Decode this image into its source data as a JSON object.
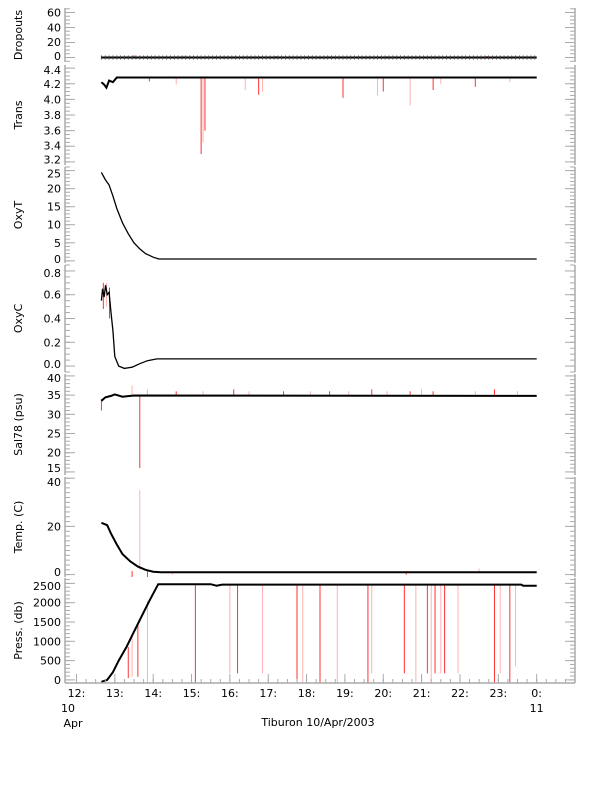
{
  "chart_data": {
    "type": "line",
    "title": "",
    "xlabel": "Tiburon 10/Apr/2003",
    "xlim_hours": [
      11.7,
      25.0
    ],
    "x_ticks": [
      {
        "h": 12,
        "label": "12:",
        "sub1": "10",
        "sub2": "Apr"
      },
      {
        "h": 13,
        "label": "13:"
      },
      {
        "h": 14,
        "label": "14:"
      },
      {
        "h": 15,
        "label": "15:"
      },
      {
        "h": 16,
        "label": "16:"
      },
      {
        "h": 17,
        "label": "17:"
      },
      {
        "h": 18,
        "label": "18:"
      },
      {
        "h": 19,
        "label": "19:"
      },
      {
        "h": 20,
        "label": "20:"
      },
      {
        "h": 21,
        "label": "21:"
      },
      {
        "h": 22,
        "label": "22:"
      },
      {
        "h": 23,
        "label": "23:"
      },
      {
        "h": 24,
        "label": "0:",
        "sub1": "11"
      }
    ],
    "colors": {
      "line": "#000000",
      "spike": "#ff3333",
      "spike_light": "#ffb0b0",
      "axis": "#aaaaaa"
    },
    "panels": [
      {
        "id": "dropouts",
        "ylabel": "Dropouts",
        "ylim": [
          -6,
          66
        ],
        "ticks": [
          0,
          20,
          40,
          60
        ],
        "minor": 5,
        "series": [
          [
            12.65,
            0
          ],
          [
            24.0,
            0
          ]
        ],
        "spikes": [
          [
            13.5,
            0,
            3
          ],
          [
            14.8,
            0,
            3
          ],
          [
            17.2,
            0,
            2
          ],
          [
            20.1,
            0,
            2
          ],
          [
            22.7,
            0,
            2
          ]
        ]
      },
      {
        "id": "trans",
        "ylabel": "Trans",
        "ylim": [
          3.16,
          4.44
        ],
        "ticks": [
          3.2,
          3.4,
          3.6,
          3.8,
          4.0,
          4.2,
          4.4
        ],
        "minor": 0.05,
        "decimals": 1,
        "series": [
          [
            12.65,
            4.22
          ],
          [
            12.72,
            4.19
          ],
          [
            12.78,
            4.15
          ],
          [
            12.85,
            4.24
          ],
          [
            12.95,
            4.22
          ],
          [
            13.05,
            4.28
          ],
          [
            24.0,
            4.28
          ]
        ],
        "spikes": [
          [
            13.9,
            4.23,
            4.28
          ],
          [
            14.6,
            4.19,
            4.28
          ],
          [
            15.25,
            3.3,
            4.28
          ],
          [
            15.3,
            3.45,
            4.28
          ],
          [
            15.35,
            3.6,
            4.28
          ],
          [
            16.4,
            4.12,
            4.28
          ],
          [
            16.75,
            4.06,
            4.28
          ],
          [
            16.85,
            4.1,
            4.28
          ],
          [
            18.95,
            4.02,
            4.28
          ],
          [
            19.85,
            4.05,
            4.28
          ],
          [
            20.0,
            4.1,
            4.28
          ],
          [
            20.7,
            3.92,
            4.28
          ],
          [
            21.3,
            4.12,
            4.28
          ],
          [
            21.5,
            4.2,
            4.28
          ],
          [
            22.4,
            4.16,
            4.28
          ],
          [
            23.3,
            4.22,
            4.28
          ]
        ]
      },
      {
        "id": "oxyt",
        "ylabel": "OxyT",
        "ylim": [
          -0.6,
          26
        ],
        "ticks": [
          0,
          5,
          10,
          15,
          20,
          25
        ],
        "minor": 1,
        "series": [
          [
            12.65,
            24.5
          ],
          [
            12.75,
            22.5
          ],
          [
            12.85,
            21
          ],
          [
            12.95,
            18
          ],
          [
            13.05,
            14.5
          ],
          [
            13.2,
            10.5
          ],
          [
            13.35,
            7.5
          ],
          [
            13.5,
            5
          ],
          [
            13.65,
            3.3
          ],
          [
            13.8,
            2
          ],
          [
            14.0,
            1
          ],
          [
            14.15,
            0.5
          ],
          [
            24.0,
            0.5
          ]
        ],
        "spikes": []
      },
      {
        "id": "oxyc",
        "ylabel": "OxyC",
        "ylim": [
          -0.05,
          0.85
        ],
        "ticks": [
          0.0,
          0.2,
          0.4,
          0.6,
          0.8
        ],
        "minor": 0.05,
        "decimals": 1,
        "series": [
          [
            12.65,
            0.55
          ],
          [
            12.68,
            0.65
          ],
          [
            12.72,
            0.58
          ],
          [
            12.76,
            0.68
          ],
          [
            12.8,
            0.6
          ],
          [
            12.85,
            0.62
          ],
          [
            12.9,
            0.45
          ],
          [
            12.95,
            0.3
          ],
          [
            13.0,
            0.08
          ],
          [
            13.1,
            0.0
          ],
          [
            13.25,
            -0.02
          ],
          [
            13.45,
            -0.01
          ],
          [
            13.65,
            0.02
          ],
          [
            13.85,
            0.045
          ],
          [
            14.1,
            0.06
          ],
          [
            24.0,
            0.06
          ]
        ],
        "spikes": [
          [
            12.7,
            0.48,
            0.7
          ],
          [
            12.78,
            0.5,
            0.7
          ],
          [
            12.86,
            0.4,
            0.66
          ]
        ]
      },
      {
        "id": "sal78",
        "ylabel": "Sal78 (psu)",
        "ylim": [
          14.2,
          40.5
        ],
        "ticks": [
          15,
          20,
          25,
          30,
          35,
          40
        ],
        "minor": 1,
        "series": [
          [
            12.65,
            33.5
          ],
          [
            12.75,
            34.4
          ],
          [
            12.9,
            34.8
          ],
          [
            13.0,
            35.2
          ],
          [
            13.2,
            34.6
          ],
          [
            13.5,
            34.9
          ],
          [
            24.0,
            34.8
          ]
        ],
        "spikes": [
          [
            12.65,
            31,
            34
          ],
          [
            13.45,
            34.8,
            37.5
          ],
          [
            13.65,
            16,
            34.8
          ],
          [
            13.85,
            34.8,
            36.5
          ],
          [
            14.6,
            34.8,
            36
          ],
          [
            15.3,
            34.8,
            36
          ],
          [
            16.1,
            34.8,
            36.5
          ],
          [
            16.5,
            34.8,
            36
          ],
          [
            17.4,
            34.8,
            36
          ],
          [
            18.1,
            34.8,
            36
          ],
          [
            18.6,
            34.8,
            36
          ],
          [
            19.1,
            34.8,
            36
          ],
          [
            19.7,
            34.8,
            36.5
          ],
          [
            20.1,
            34.8,
            36
          ],
          [
            20.7,
            34.8,
            36
          ],
          [
            21.0,
            34.8,
            36.5
          ],
          [
            21.3,
            34.8,
            36
          ],
          [
            22.4,
            34.8,
            36
          ],
          [
            22.9,
            34.8,
            36.5
          ],
          [
            23.5,
            34.8,
            36
          ]
        ]
      },
      {
        "id": "temp",
        "ylabel": "Temp. (C)",
        "ylim": [
          -1,
          40.5
        ],
        "ticks": [
          0,
          20,
          40
        ],
        "minor": 2,
        "series": [
          [
            12.65,
            21.5
          ],
          [
            12.8,
            20.5
          ],
          [
            12.9,
            17
          ],
          [
            13.05,
            12.5
          ],
          [
            13.2,
            8.5
          ],
          [
            13.4,
            5.5
          ],
          [
            13.6,
            3.3
          ],
          [
            13.8,
            2
          ],
          [
            14.0,
            1.2
          ],
          [
            14.2,
            1
          ],
          [
            24.0,
            1
          ]
        ],
        "spikes": [
          [
            13.45,
            -1,
            1.5
          ],
          [
            13.65,
            2,
            35
          ],
          [
            13.85,
            -1,
            1.5
          ],
          [
            14.5,
            0,
            1
          ],
          [
            20.6,
            0,
            1.5
          ],
          [
            22.5,
            1,
            2.5
          ]
        ]
      },
      {
        "id": "press",
        "ylabel": "Press. (db)",
        "ylim": [
          -80,
          2640
        ],
        "ticks": [
          0,
          500,
          1000,
          1500,
          2000,
          2500
        ],
        "minor": 100,
        "series": [
          [
            12.65,
            -50
          ],
          [
            12.8,
            0
          ],
          [
            12.95,
            200
          ],
          [
            13.1,
            500
          ],
          [
            13.3,
            850
          ],
          [
            13.5,
            1250
          ],
          [
            13.7,
            1650
          ],
          [
            13.9,
            2050
          ],
          [
            14.13,
            2480
          ],
          [
            15.5,
            2480
          ],
          [
            15.65,
            2440
          ],
          [
            15.8,
            2470
          ],
          [
            23.6,
            2470
          ],
          [
            23.65,
            2440
          ],
          [
            24.0,
            2440
          ]
        ],
        "spikes": [
          [
            13.35,
            50,
            850
          ],
          [
            13.45,
            80,
            1100
          ],
          [
            13.6,
            80,
            1450
          ],
          [
            13.85,
            -80,
            2050
          ],
          [
            15.1,
            -80,
            2480
          ],
          [
            16.0,
            170,
            2480
          ],
          [
            16.2,
            170,
            2480
          ],
          [
            16.85,
            170,
            2480
          ],
          [
            17.75,
            -80,
            2480
          ],
          [
            17.9,
            -80,
            2480
          ],
          [
            18.35,
            -80,
            2480
          ],
          [
            18.8,
            -80,
            2480
          ],
          [
            19.6,
            -80,
            2480
          ],
          [
            19.7,
            170,
            2480
          ],
          [
            20.55,
            170,
            2480
          ],
          [
            20.85,
            -80,
            2480
          ],
          [
            21.15,
            170,
            2480
          ],
          [
            21.25,
            -80,
            2480
          ],
          [
            21.35,
            170,
            2480
          ],
          [
            21.5,
            170,
            2480
          ],
          [
            21.6,
            170,
            2480
          ],
          [
            21.95,
            170,
            2480
          ],
          [
            22.9,
            -80,
            2470
          ],
          [
            23.05,
            170,
            2470
          ],
          [
            23.3,
            -80,
            2470
          ],
          [
            23.45,
            350,
            2470
          ]
        ]
      }
    ]
  }
}
